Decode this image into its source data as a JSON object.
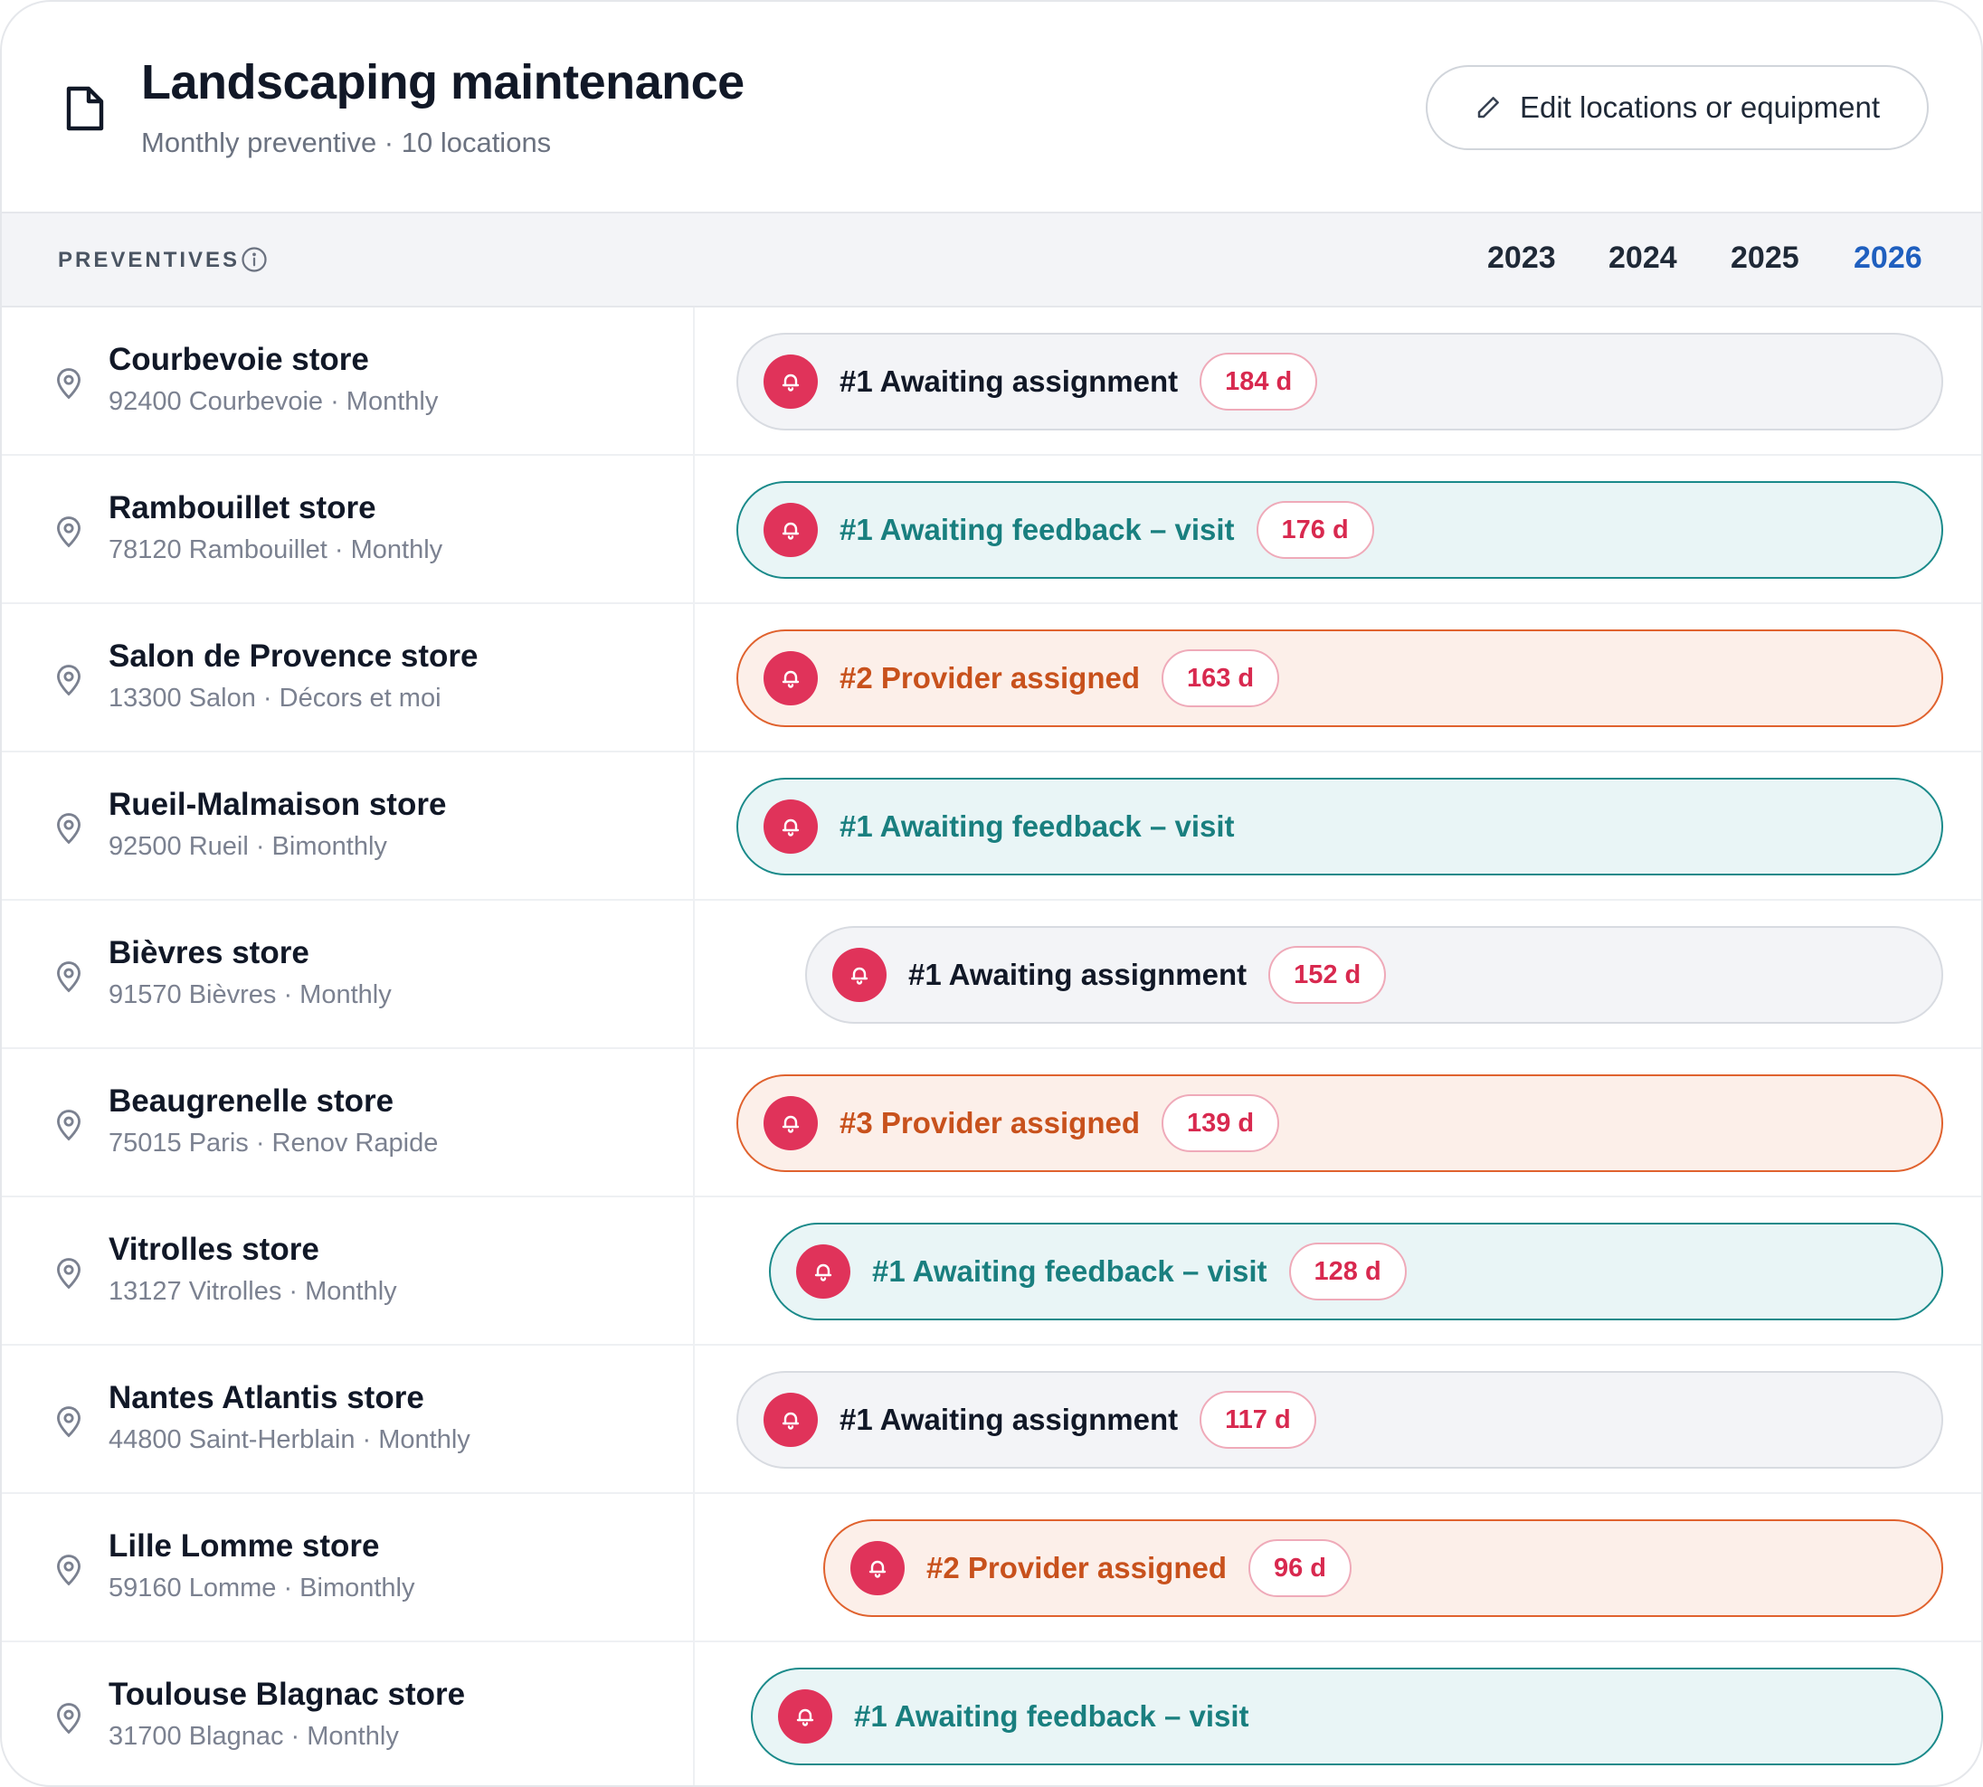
{
  "header": {
    "title": "Landscaping maintenance",
    "subtitle": "Monthly preventive · 10 locations",
    "edit_button_label": "Edit locations or equipment",
    "icon": "document-icon",
    "edit_icon": "pencil-icon"
  },
  "column_header": {
    "label": "PREVENTIVES",
    "info_icon": "info-icon",
    "years": [
      "2023",
      "2024",
      "2025",
      "2026"
    ],
    "active_year": "2026"
  },
  "colors": {
    "accent_blue": "#1f5fbf",
    "bell_red": "#e0335a",
    "teal": "#197f7f",
    "orange": "#c8511c",
    "days_red": "#d8294f"
  },
  "rows": [
    {
      "name": "Courbevoie store",
      "sub": "92400 Courbevoie · Monthly",
      "status": "#1 Awaiting assignment",
      "variant": "gray",
      "days": "184 d"
    },
    {
      "name": "Rambouillet store",
      "sub": "78120 Rambouillet · Monthly",
      "status": "#1 Awaiting feedback – visit",
      "variant": "teal",
      "days": "176 d"
    },
    {
      "name": "Salon de Provence store",
      "sub": "13300 Salon · Décors et moi",
      "status": "#2 Provider assigned",
      "variant": "orange",
      "days": "163 d"
    },
    {
      "name": "Rueil-Malmaison store",
      "sub": "92500 Rueil · Bimonthly",
      "status": "#1 Awaiting feedback – visit",
      "variant": "teal",
      "days": ""
    },
    {
      "name": "Bièvres store",
      "sub": "91570 Bièvres · Monthly",
      "status": "#1 Awaiting assignment",
      "variant": "gray",
      "days": "152 d"
    },
    {
      "name": "Beaugrenelle store",
      "sub": "75015 Paris · Renov Rapide",
      "status": "#3 Provider assigned",
      "variant": "orange",
      "days": "139 d"
    },
    {
      "name": "Vitrolles store",
      "sub": "13127 Vitrolles · Monthly",
      "status": "#1 Awaiting feedback – visit",
      "variant": "teal",
      "days": "128 d"
    },
    {
      "name": "Nantes Atlantis store",
      "sub": "44800 Saint-Herblain · Monthly",
      "status": "#1 Awaiting assignment",
      "variant": "gray",
      "days": "117 d"
    },
    {
      "name": "Lille Lomme store",
      "sub": "59160 Lomme · Bimonthly",
      "status": "#2 Provider assigned",
      "variant": "orange",
      "days": "96 d"
    },
    {
      "name": "Toulouse Blagnac store",
      "sub": "31700 Blagnac · Monthly",
      "status": "#1 Awaiting feedback – visit",
      "variant": "teal",
      "days": ""
    }
  ]
}
